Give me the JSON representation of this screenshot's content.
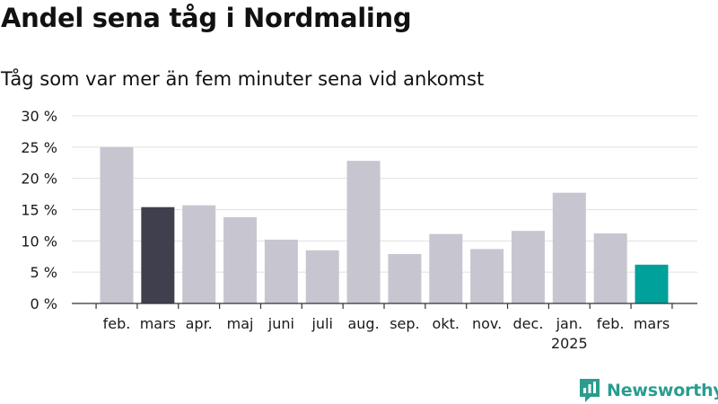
{
  "title": "Andel sena tåg i Nordmaling",
  "subtitle": "Tåg som var mer än fem minuter sena vid ankomst",
  "brand": "Newsworthy",
  "colors": {
    "bar": "#c7c6d0",
    "highlight_prev": "#403f4d",
    "highlight_current": "#00a19a",
    "grid": "#e1e1e1",
    "axis": "#333333",
    "brand": "#2a9d8f"
  },
  "chart_data": {
    "type": "bar",
    "categories": [
      "feb.",
      "mars",
      "apr.",
      "maj",
      "juni",
      "juli",
      "aug.",
      "sep.",
      "okt.",
      "nov.",
      "dec.",
      "jan.",
      "feb.",
      "mars"
    ],
    "category_sublabels": [
      "",
      "",
      "",
      "",
      "",
      "",
      "",
      "",
      "",
      "",
      "",
      "2025",
      "",
      ""
    ],
    "values": [
      25.0,
      15.4,
      15.7,
      13.8,
      10.2,
      8.5,
      22.8,
      7.9,
      11.1,
      8.7,
      11.6,
      17.7,
      11.2,
      6.2
    ],
    "highlight": [
      "",
      "previous",
      "",
      "",
      "",
      "",
      "",
      "",
      "",
      "",
      "",
      "",
      "",
      "current"
    ],
    "ylim": [
      0,
      30
    ],
    "yticks": [
      0,
      5,
      10,
      15,
      20,
      25,
      30
    ],
    "ytick_labels": [
      "0 %",
      "5 %",
      "10 %",
      "15 %",
      "20 %",
      "25 %",
      "30 %"
    ],
    "grid": true,
    "xlabel": "",
    "ylabel": ""
  }
}
